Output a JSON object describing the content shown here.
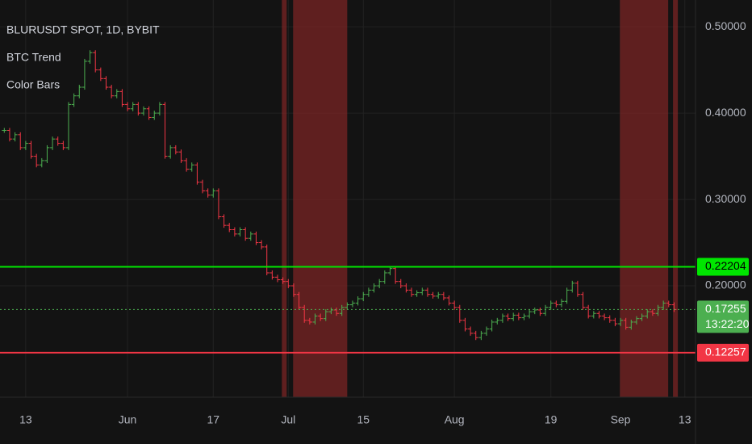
{
  "chart_data": {
    "type": "ohlc",
    "title": "BLURUSDT SPOT, 1D, BYBIT",
    "indicators": [
      "BTC Trend",
      "Color Bars"
    ],
    "x": [
      0,
      1,
      2,
      3,
      4,
      5,
      6,
      7,
      8,
      9,
      10,
      11,
      12,
      13,
      14,
      15,
      16,
      17,
      18,
      19,
      20,
      21,
      22,
      23,
      24,
      25,
      26,
      27,
      28,
      29,
      30,
      31,
      32,
      33,
      34,
      35,
      36,
      37,
      38,
      39,
      40,
      41,
      42,
      43,
      44,
      45,
      46,
      47,
      48,
      49,
      50,
      51,
      52,
      53,
      54,
      55,
      56,
      57,
      58,
      59,
      60,
      61,
      62,
      63,
      64,
      65,
      66,
      67,
      68,
      69,
      70,
      71,
      72,
      73,
      74,
      75,
      76,
      77,
      78,
      79,
      80,
      81,
      82,
      83,
      84,
      85,
      86,
      87,
      88,
      89,
      90,
      91,
      92,
      93,
      94,
      95,
      96,
      97,
      98,
      99,
      100,
      101,
      102,
      103,
      104,
      105,
      106,
      107,
      108,
      109,
      110,
      111,
      112,
      113,
      114,
      115,
      116,
      117,
      118,
      119,
      120,
      121,
      122,
      123,
      124,
      125
    ],
    "series": [
      {
        "name": "BLURUSDT",
        "up_color": "#4caf50",
        "down_color": "#f23645",
        "values": [
          0.38,
          0.37,
          0.375,
          0.36,
          0.365,
          0.35,
          0.34,
          0.345,
          0.36,
          0.37,
          0.365,
          0.36,
          0.41,
          0.42,
          0.43,
          0.46,
          0.47,
          0.45,
          0.44,
          0.43,
          0.42,
          0.425,
          0.41,
          0.405,
          0.41,
          0.4,
          0.405,
          0.395,
          0.4,
          0.41,
          0.35,
          0.36,
          0.355,
          0.345,
          0.335,
          0.34,
          0.32,
          0.31,
          0.305,
          0.31,
          0.28,
          0.27,
          0.265,
          0.26,
          0.265,
          0.255,
          0.26,
          0.25,
          0.245,
          0.215,
          0.21,
          0.207,
          0.205,
          0.2,
          0.19,
          0.175,
          0.16,
          0.158,
          0.165,
          0.162,
          0.17,
          0.172,
          0.168,
          0.175,
          0.178,
          0.18,
          0.185,
          0.19,
          0.195,
          0.2,
          0.205,
          0.215,
          0.22,
          0.205,
          0.2,
          0.195,
          0.19,
          0.192,
          0.195,
          0.19,
          0.188,
          0.19,
          0.186,
          0.18,
          0.175,
          0.16,
          0.15,
          0.145,
          0.14,
          0.145,
          0.15,
          0.158,
          0.16,
          0.165,
          0.162,
          0.166,
          0.163,
          0.165,
          0.17,
          0.172,
          0.168,
          0.175,
          0.18,
          0.178,
          0.182,
          0.195,
          0.203,
          0.19,
          0.175,
          0.165,
          0.168,
          0.165,
          0.163,
          0.16,
          0.156,
          0.16,
          0.152,
          0.158,
          0.162,
          0.165,
          0.17,
          0.168,
          0.175,
          0.18,
          0.178,
          0.17255
        ]
      }
    ],
    "shaded_regions": [
      [
        51.8,
        52.7
      ],
      [
        53.9,
        64
      ],
      [
        114.9,
        123.9
      ],
      [
        124.8,
        125.7
      ]
    ],
    "shade_color": "#7a2424",
    "levels": [
      {
        "value": 0.22204,
        "label": 0.22204,
        "color": "#00e600",
        "style": "solid"
      },
      {
        "value": 0.17255,
        "label": 0.17255,
        "color": "#4caf50",
        "style": "dotted",
        "countdown": "13:22:20"
      },
      {
        "value": 0.12257,
        "label": 0.12257,
        "color": "#f23645",
        "style": "solid"
      }
    ],
    "xlim": [
      -0.8,
      129
    ],
    "ylim": [
      0.071,
      0.531
    ],
    "xticks": [
      {
        "value": 4,
        "label": "13"
      },
      {
        "value": 23,
        "label": "Jun"
      },
      {
        "value": 39,
        "label": "17"
      },
      {
        "value": 53,
        "label": "Jul"
      },
      {
        "value": 67,
        "label": "15"
      },
      {
        "value": 84,
        "label": "Aug"
      },
      {
        "value": 102,
        "label": "19"
      },
      {
        "value": 115,
        "label": "Sep"
      },
      {
        "value": 127,
        "label": "13"
      }
    ],
    "yticks": [
      {
        "value": 0.5,
        "label": "0.50000"
      },
      {
        "value": 0.4,
        "label": "0.40000"
      },
      {
        "value": 0.3,
        "label": "0.30000"
      },
      {
        "value": 0.2,
        "label": "0.20000"
      }
    ],
    "grid": true
  }
}
